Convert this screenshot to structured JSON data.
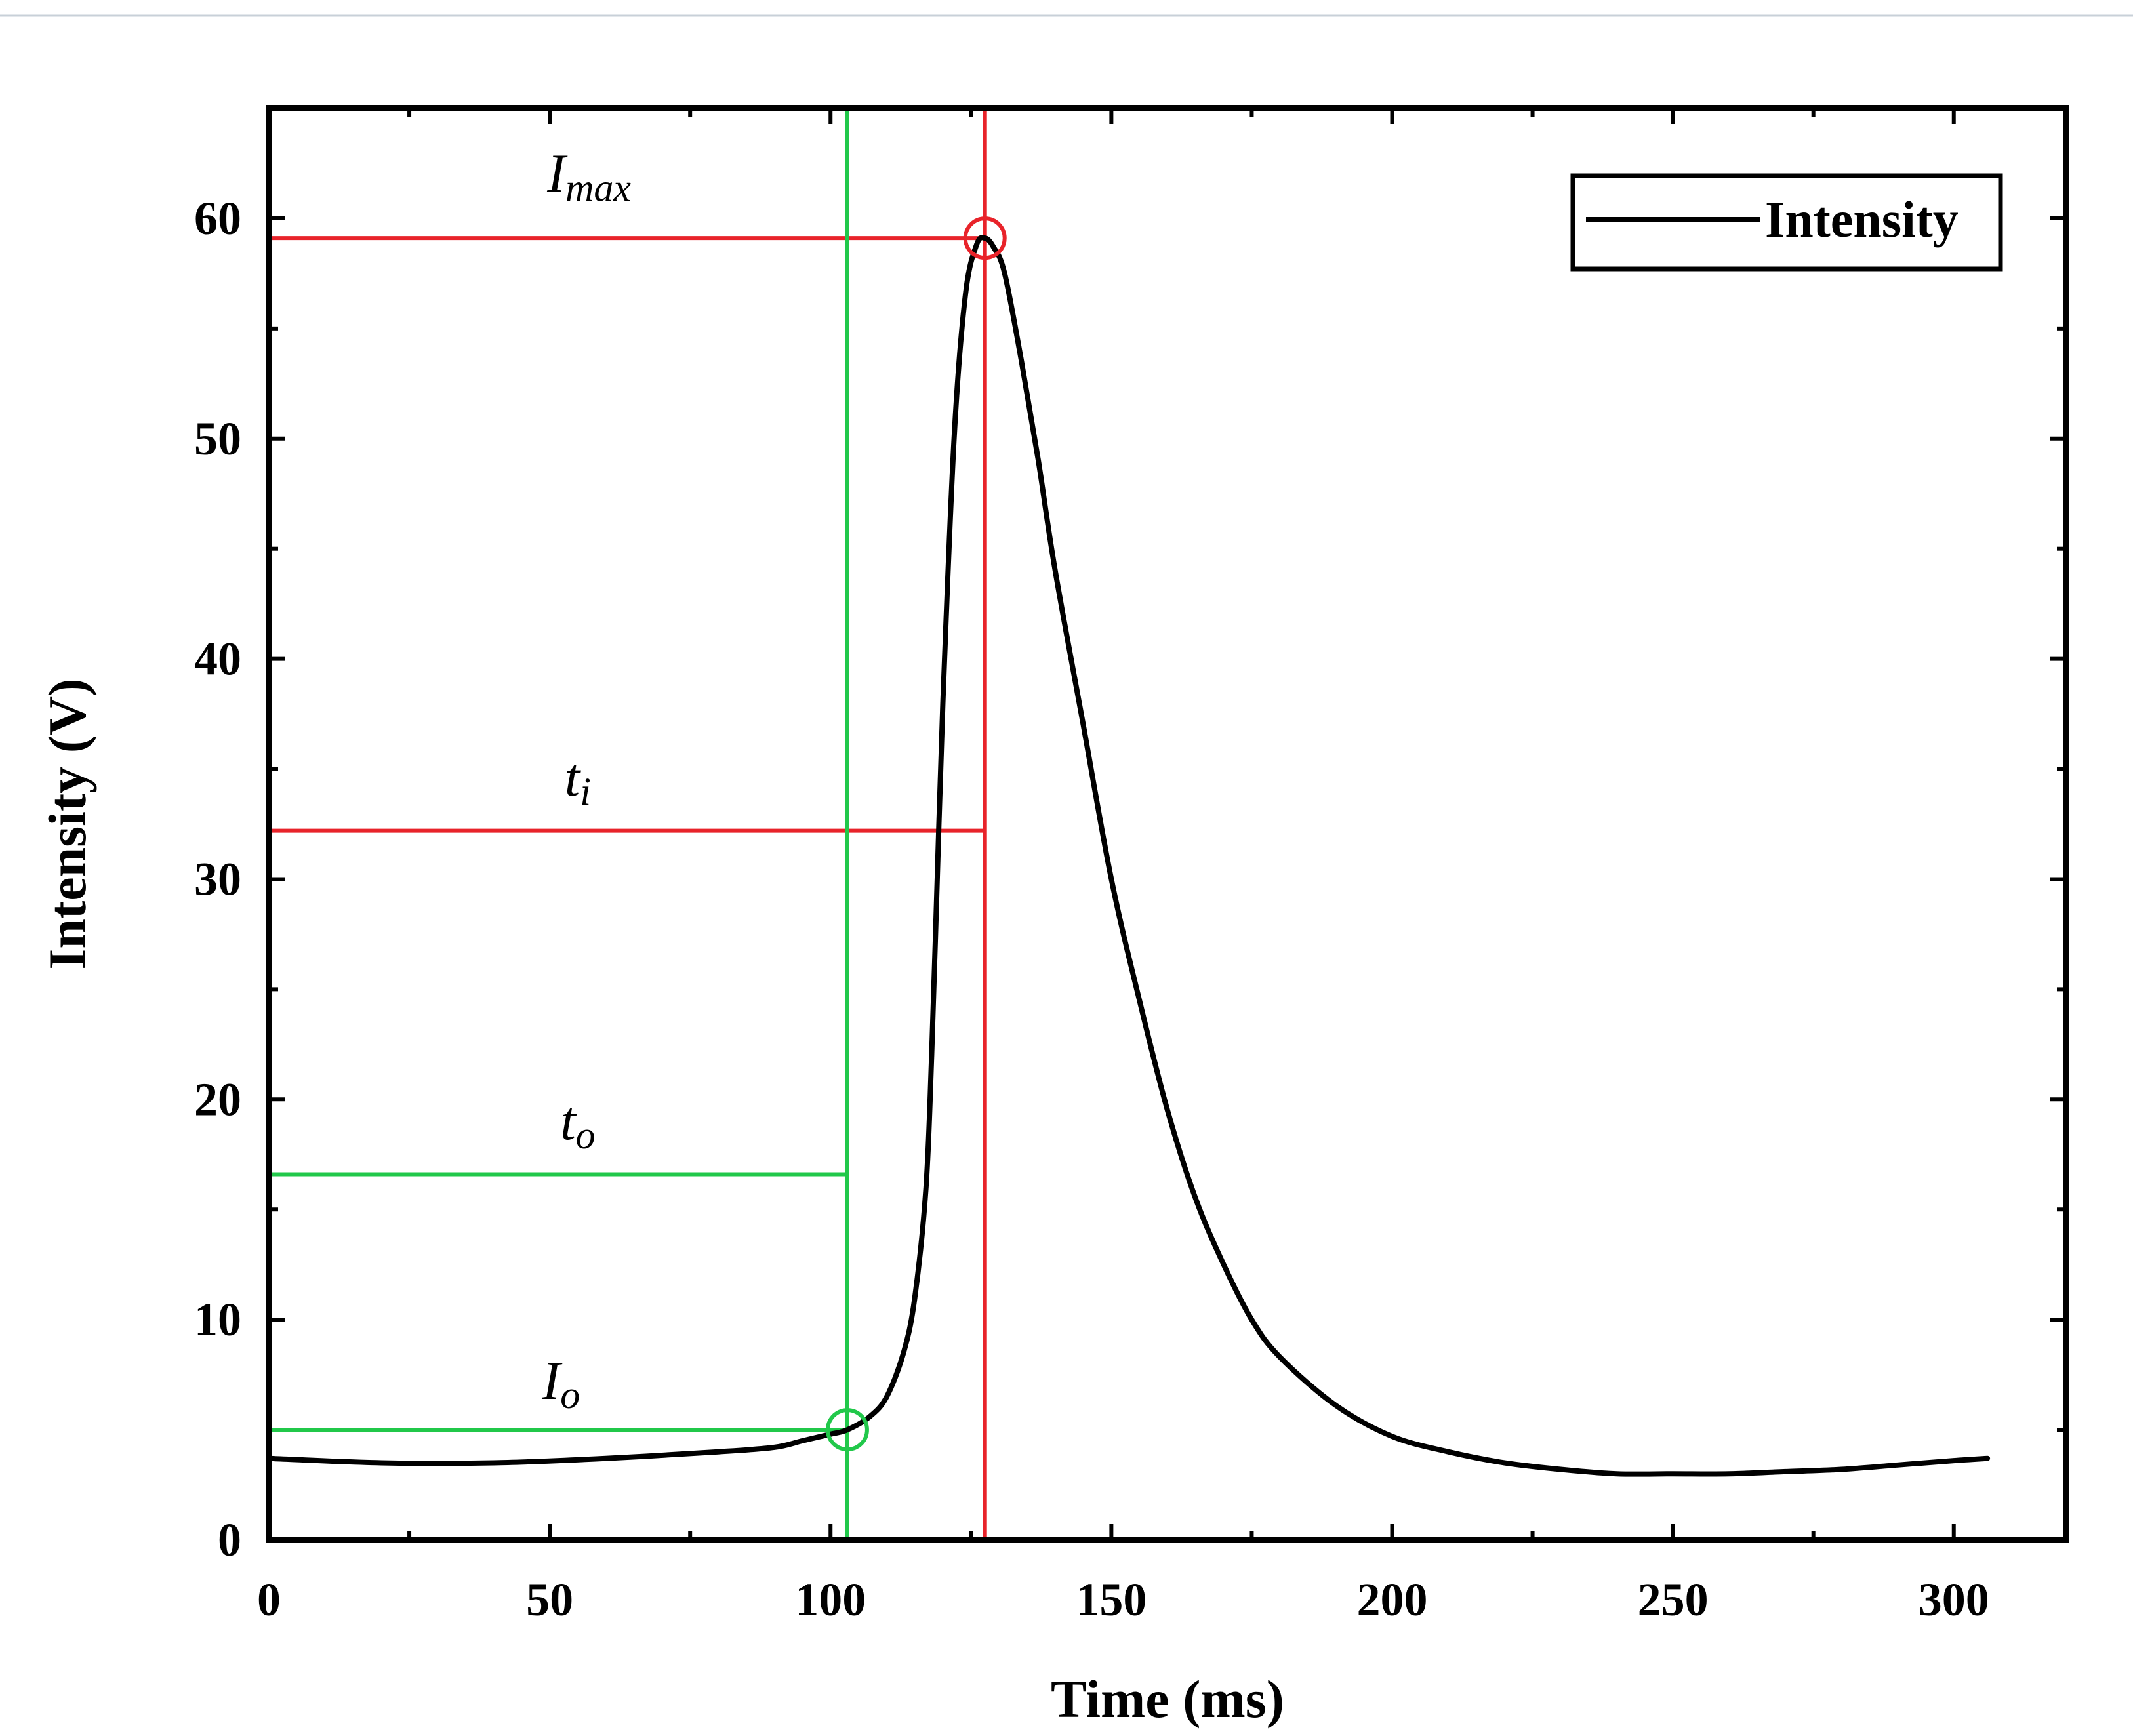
{
  "chart_data": {
    "type": "line",
    "xlabel": "Time (ms)",
    "ylabel": "Intensity (V)",
    "xlim": [
      0,
      320
    ],
    "ylim": [
      0,
      65
    ],
    "xticks": [
      0,
      50,
      100,
      150,
      200,
      250,
      300
    ],
    "yticks": [
      0,
      10,
      20,
      30,
      40,
      50,
      60
    ],
    "grid": false,
    "legend": {
      "position": "top-right",
      "entries": [
        "Intensity"
      ]
    },
    "colors": {
      "curve": "#000000",
      "red": "#e8232a",
      "green": "#21c84a"
    },
    "series": [
      {
        "name": "Intensity",
        "x": [
          0,
          20,
          40,
          60,
          80,
          90,
          95,
          100,
          103,
          107,
          110,
          113,
          115,
          117,
          118,
          119,
          120,
          122,
          124,
          126,
          127.5,
          129,
          131,
          134,
          137,
          140,
          145,
          150,
          155,
          160,
          165,
          170,
          175,
          180,
          190,
          200,
          210,
          220,
          230,
          240,
          250,
          260,
          270,
          280,
          290,
          300,
          306
        ],
        "y": [
          3.7,
          3.5,
          3.5,
          3.7,
          4.0,
          4.2,
          4.5,
          4.8,
          5.0,
          5.6,
          6.5,
          8.5,
          11.0,
          16.0,
          22.0,
          30.0,
          38.0,
          50.0,
          56.5,
          58.8,
          59.1,
          58.7,
          57.5,
          53.5,
          49.0,
          44.0,
          37.0,
          30.0,
          24.5,
          19.5,
          15.5,
          12.5,
          10.0,
          8.3,
          6.1,
          4.7,
          4.0,
          3.5,
          3.2,
          3.0,
          3.0,
          3.0,
          3.1,
          3.2,
          3.4,
          3.6,
          3.7
        ]
      }
    ],
    "markers": {
      "max_point": {
        "x": 127.5,
        "y": 59.1,
        "color": "#e8232a"
      },
      "onset_point": {
        "x": 103,
        "y": 5.0,
        "color": "#21c84a"
      }
    },
    "reference_lines": {
      "red_vertical_x": 127.5,
      "red_imax_y": 59.1,
      "red_ti_y": 32.2,
      "green_vertical_x": 103,
      "green_to_y": 16.6,
      "green_io_y": 5.0
    },
    "annotations": [
      {
        "id": "imax",
        "base": "I",
        "sub": "max",
        "x": 57,
        "y": 61.2
      },
      {
        "id": "ti",
        "base": "t",
        "sub": "i",
        "x": 55,
        "y": 33.8
      },
      {
        "id": "to",
        "base": "t",
        "sub": "o",
        "x": 55,
        "y": 18.2
      },
      {
        "id": "io",
        "base": "I",
        "sub": "o",
        "x": 52,
        "y": 6.4
      }
    ]
  }
}
